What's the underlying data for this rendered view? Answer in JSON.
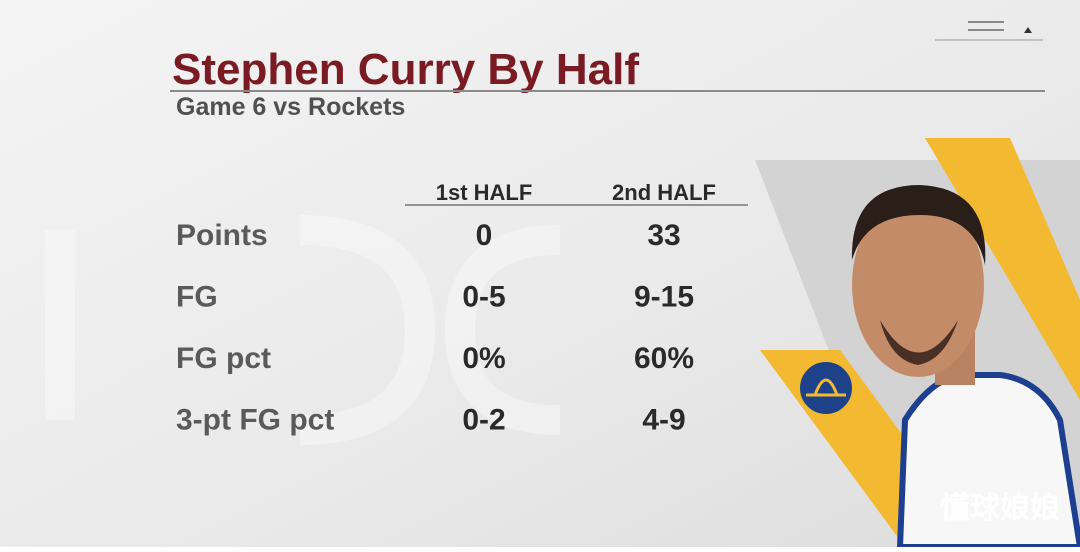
{
  "header": {
    "title": "Stephen Curry By Half",
    "subtitle": "Game 6 vs Rockets"
  },
  "table": {
    "columns": [
      "1st HALF",
      "2nd HALF"
    ],
    "rows": [
      [
        "Points",
        "0",
        "33"
      ],
      [
        "FG",
        "0-5",
        "9-15"
      ],
      [
        "FG pct",
        "0%",
        "60%"
      ],
      [
        "3-pt FG pct",
        "0-2",
        "4-9"
      ]
    ]
  },
  "watermark": "懂球娘娘"
}
